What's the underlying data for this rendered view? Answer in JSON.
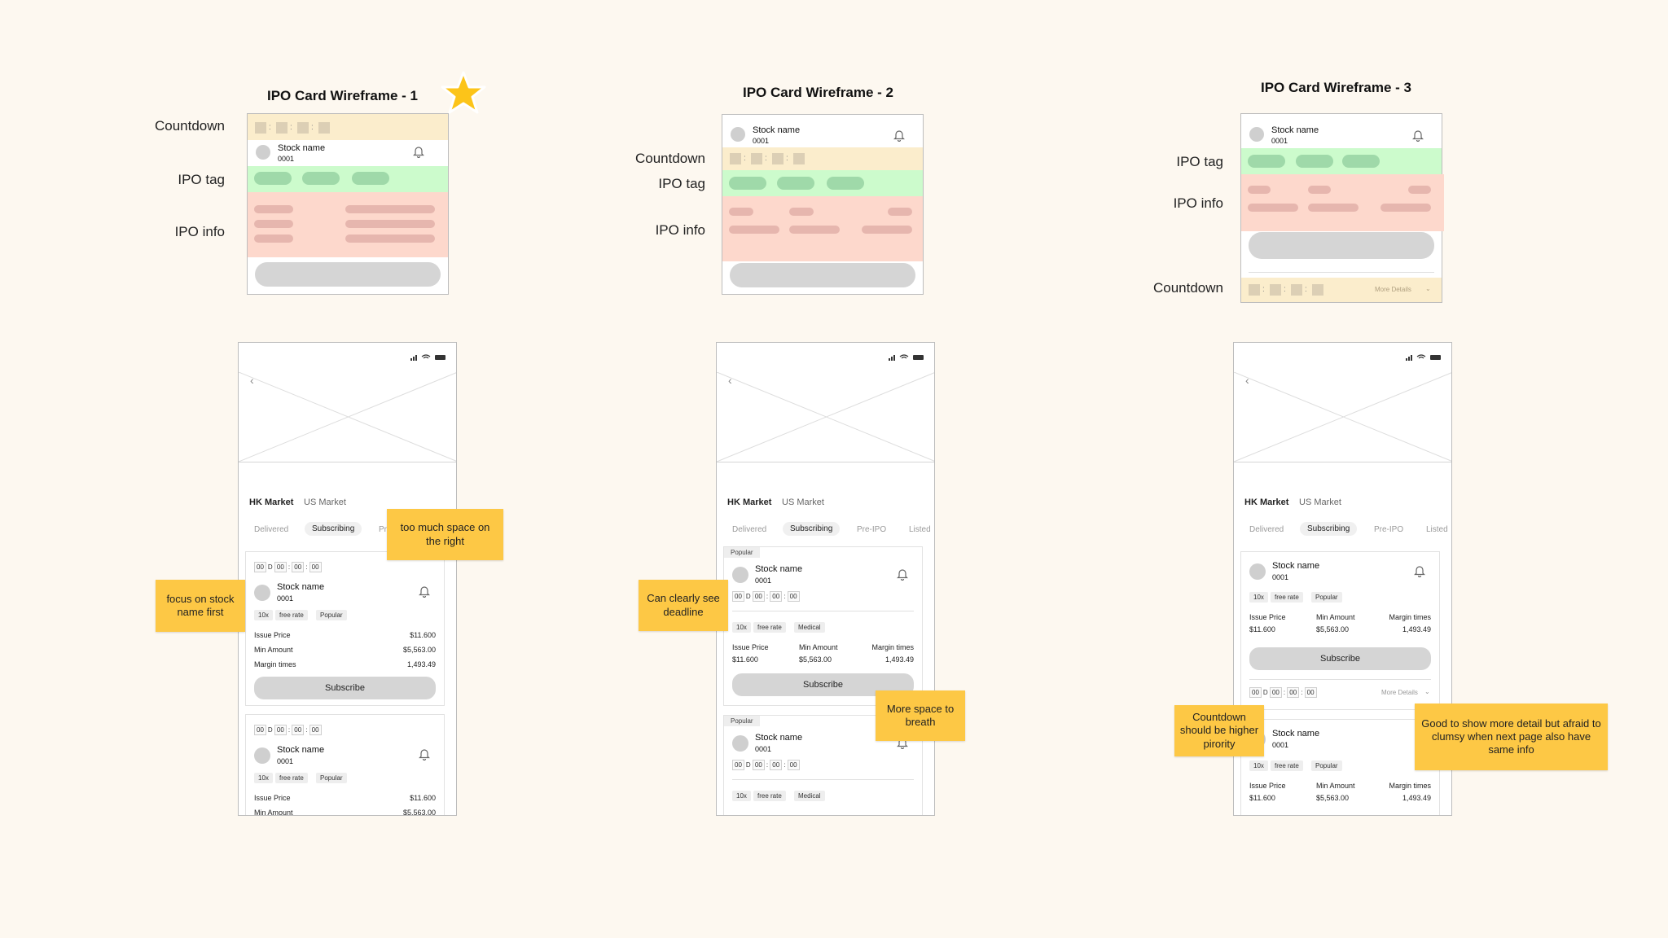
{
  "wireframes": [
    {
      "title": "IPO Card Wireframe - 1",
      "labels": [
        "Countdown",
        "IPO tag",
        "IPO info"
      ],
      "stock_name": "Stock name",
      "stock_code": "0001",
      "has_star": true
    },
    {
      "title": "IPO Card Wireframe - 2",
      "labels": [
        "Countdown",
        "IPO tag",
        "IPO info"
      ],
      "stock_name": "Stock name",
      "stock_code": "0001"
    },
    {
      "title": "IPO Card Wireframe - 3",
      "labels": [
        "IPO tag",
        "IPO info",
        "Countdown"
      ],
      "stock_name": "Stock name",
      "stock_code": "0001",
      "more_details": "More Details"
    }
  ],
  "countdown_colon": ":",
  "phone": {
    "markets": [
      "HK Market",
      "US Market"
    ],
    "tabs": [
      "Delivered",
      "Subscribing",
      "Pre-IPO",
      "Listed"
    ],
    "tab_partial": "Pr",
    "stock_name": "Stock name",
    "stock_code": "0001",
    "countdown": [
      "00",
      "D",
      "00",
      ":",
      "00",
      ":",
      "00"
    ],
    "chips_a": [
      "10x",
      "free rate",
      "Popular"
    ],
    "chips_b": [
      "10x",
      "free rate",
      "Medical"
    ],
    "issue_price_label": "Issue Price",
    "min_amount_label": "Min Amount",
    "margin_label": "Margin times",
    "issue_price": "$11.600",
    "min_amount": "$5,563.00",
    "margin": "1,493.49",
    "subscribe": "Subscribe",
    "popular": "Popular",
    "more_details": "More Details"
  },
  "notes": [
    "too much space on the right",
    "focus on stock name first",
    "Can clearly see deadline",
    "More space to breath",
    "Countdown should be higher pirority",
    "Good to show more detail but afraid to clumsy when next page also have same info"
  ],
  "colors": {
    "countdown_band": "#fbedcc",
    "tag_band": "#ccfbcc",
    "info_band": "#fdd8cc",
    "sticky": "#fdc845",
    "star": "#fcc419"
  }
}
